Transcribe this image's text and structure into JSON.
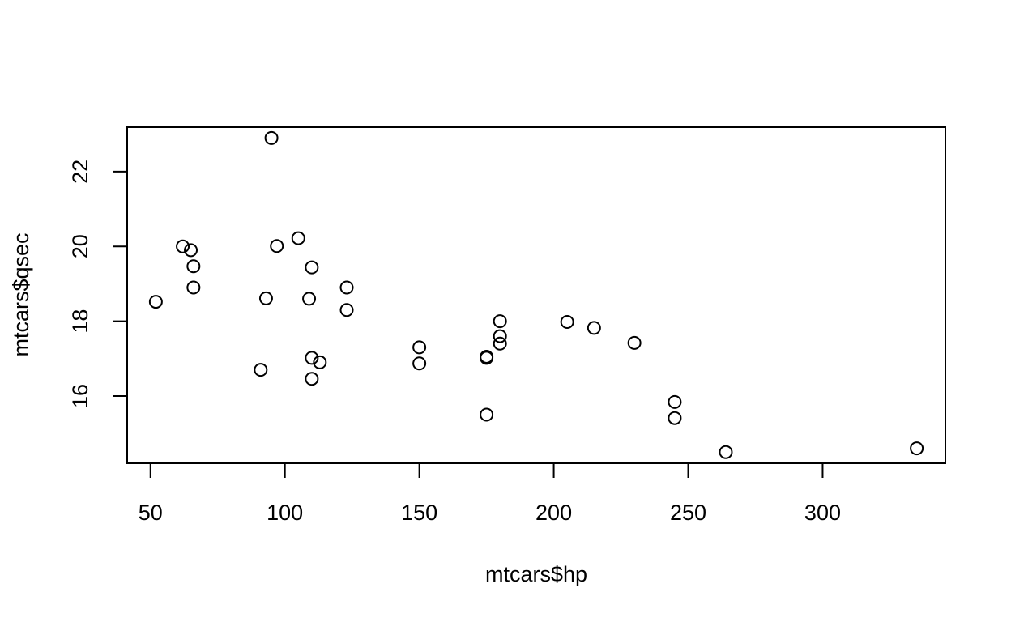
{
  "chart_data": {
    "type": "scatter",
    "xlabel": "mtcars$hp",
    "ylabel": "mtcars$qsec",
    "xlim": [
      41.34,
      345.66
    ],
    "ylim": [
      14.2016,
      23.1884
    ],
    "xticks": [
      50,
      100,
      150,
      200,
      250,
      300
    ],
    "yticks": [
      16,
      18,
      20,
      22
    ],
    "points": [
      {
        "x": 110,
        "y": 16.46
      },
      {
        "x": 110,
        "y": 17.02
      },
      {
        "x": 93,
        "y": 18.61
      },
      {
        "x": 110,
        "y": 19.44
      },
      {
        "x": 175,
        "y": 17.02
      },
      {
        "x": 105,
        "y": 20.22
      },
      {
        "x": 245,
        "y": 15.84
      },
      {
        "x": 62,
        "y": 20.0
      },
      {
        "x": 95,
        "y": 22.9
      },
      {
        "x": 123,
        "y": 18.3
      },
      {
        "x": 123,
        "y": 18.9
      },
      {
        "x": 180,
        "y": 17.4
      },
      {
        "x": 180,
        "y": 17.6
      },
      {
        "x": 180,
        "y": 18.0
      },
      {
        "x": 205,
        "y": 17.98
      },
      {
        "x": 215,
        "y": 17.82
      },
      {
        "x": 230,
        "y": 17.42
      },
      {
        "x": 66,
        "y": 19.47
      },
      {
        "x": 52,
        "y": 18.52
      },
      {
        "x": 65,
        "y": 19.9
      },
      {
        "x": 97,
        "y": 20.01
      },
      {
        "x": 150,
        "y": 16.87
      },
      {
        "x": 150,
        "y": 17.3
      },
      {
        "x": 245,
        "y": 15.41
      },
      {
        "x": 175,
        "y": 17.05
      },
      {
        "x": 66,
        "y": 18.9
      },
      {
        "x": 91,
        "y": 16.7
      },
      {
        "x": 113,
        "y": 16.9
      },
      {
        "x": 264,
        "y": 14.5
      },
      {
        "x": 175,
        "y": 15.5
      },
      {
        "x": 335,
        "y": 14.6
      },
      {
        "x": 109,
        "y": 18.6
      }
    ]
  }
}
